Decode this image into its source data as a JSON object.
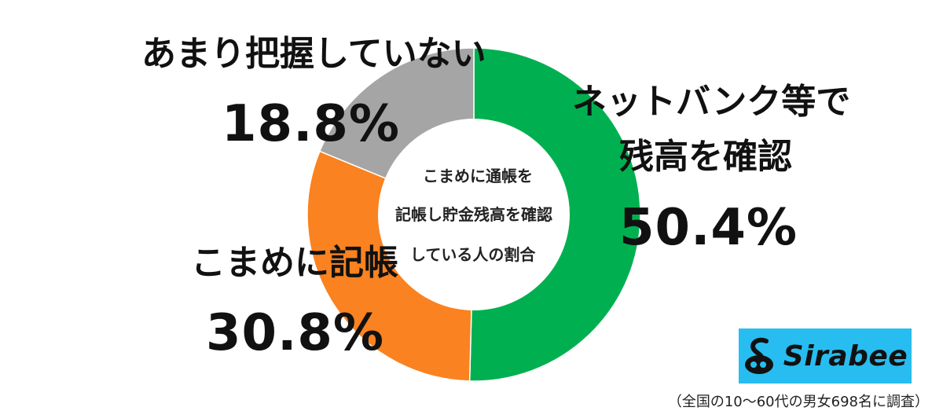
{
  "chart_data": {
    "type": "pie",
    "title": "",
    "center_label": [
      "こまめに通帳を",
      "記帳し貯金残高を確認",
      "している人の割合"
    ],
    "slices": [
      {
        "label_lines": [
          "ネットバンク等で",
          "残高を確認"
        ],
        "value": 50.4,
        "value_label": "50.4%",
        "color": "#00b050"
      },
      {
        "label_lines": [
          "こまめに記帳"
        ],
        "value": 30.8,
        "value_label": "30.8%",
        "color": "#fa8220"
      },
      {
        "label_lines": [
          "あまり把握していない"
        ],
        "value": 18.8,
        "value_label": "18.8%",
        "color": "#a5a5a5"
      }
    ]
  },
  "logo": {
    "text": "Sirabee",
    "color": "#27bdf0"
  },
  "footnote": "（全国の10〜60代の男女698名に調査）"
}
